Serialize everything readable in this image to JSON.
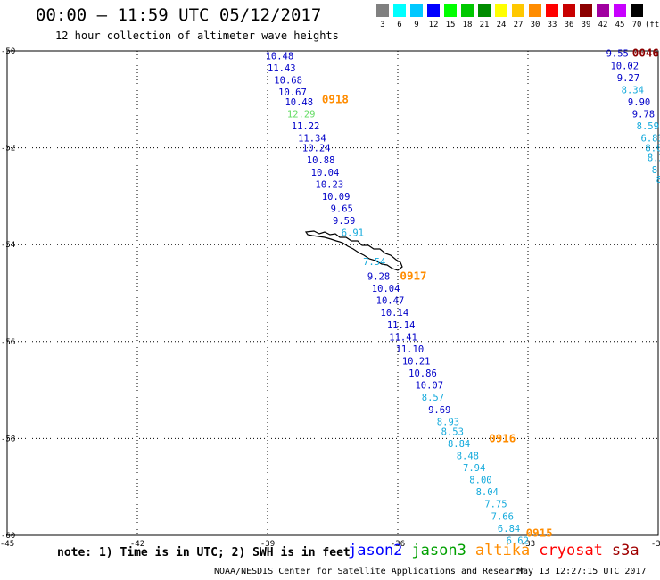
{
  "header": {
    "title": "00:00 — 11:59 UTC 05/12/2017",
    "subtitle": "12 hour collection of altimeter wave heights"
  },
  "legend": {
    "unit": "(ft)",
    "levels": [
      {
        "label": "3",
        "color": "#808080"
      },
      {
        "label": "6",
        "color": "#00ffff"
      },
      {
        "label": "9",
        "color": "#00c8ff"
      },
      {
        "label": "12",
        "color": "#0000ff"
      },
      {
        "label": "15",
        "color": "#00ff00"
      },
      {
        "label": "18",
        "color": "#00c800"
      },
      {
        "label": "21",
        "color": "#008c00"
      },
      {
        "label": "24",
        "color": "#ffff00"
      },
      {
        "label": "27",
        "color": "#ffc800"
      },
      {
        "label": "30",
        "color": "#ff8c00"
      },
      {
        "label": "33",
        "color": "#ff0000"
      },
      {
        "label": "36",
        "color": "#c80000"
      },
      {
        "label": "39",
        "color": "#8c0000"
      },
      {
        "label": "42",
        "color": "#a000a0"
      },
      {
        "label": "45",
        "color": "#c800ff"
      },
      {
        "label": "70",
        "color": "#000000"
      }
    ]
  },
  "axes": {
    "lon_ticks": [
      "-45",
      "-42",
      "-39",
      "-36",
      "-33",
      "-30"
    ],
    "lat_ticks": [
      "-50",
      "-52",
      "-54",
      "-56",
      "-58",
      "-60"
    ]
  },
  "passes": [
    {
      "label": "0918",
      "lon": -37.75,
      "lat": -51.0,
      "color": "#ff8c00"
    },
    {
      "label": "0917",
      "lon": -35.95,
      "lat": -54.65,
      "color": "#ff8c00"
    },
    {
      "label": "0916",
      "lon": -33.9,
      "lat": -58.0,
      "color": "#ff8c00"
    },
    {
      "label": "0915",
      "lon": -33.05,
      "lat": -59.95,
      "color": "#ff8c00"
    },
    {
      "label": "0046",
      "lon": -30.6,
      "lat": -50.05,
      "color": "#8c0000"
    }
  ],
  "observations": [
    {
      "text": "10.48",
      "lon": -39.05,
      "lat": -50.1,
      "color": "#0000c8"
    },
    {
      "text": "11.43",
      "lon": -39.0,
      "lat": -50.35,
      "color": "#0000c8"
    },
    {
      "text": "10.68",
      "lon": -38.85,
      "lat": -50.6,
      "color": "#0000c8"
    },
    {
      "text": "10.67",
      "lon": -38.75,
      "lat": -50.85,
      "color": "#0000c8"
    },
    {
      "text": "10.48",
      "lon": -38.6,
      "lat": -51.05,
      "color": "#0000c8"
    },
    {
      "text": "12.29",
      "lon": -38.55,
      "lat": -51.3,
      "color": "#64dc64"
    },
    {
      "text": "11.22",
      "lon": -38.45,
      "lat": -51.55,
      "color": "#0000c8"
    },
    {
      "text": "11.34",
      "lon": -38.3,
      "lat": -51.8,
      "color": "#0000c8"
    },
    {
      "text": "10.24",
      "lon": -38.2,
      "lat": -52.0,
      "color": "#0000c8"
    },
    {
      "text": "10.88",
      "lon": -38.1,
      "lat": -52.25,
      "color": "#0000c8"
    },
    {
      "text": "10.04",
      "lon": -38.0,
      "lat": -52.5,
      "color": "#0000c8"
    },
    {
      "text": "10.23",
      "lon": -37.9,
      "lat": -52.75,
      "color": "#0000c8"
    },
    {
      "text": "10.09",
      "lon": -37.75,
      "lat": -53.0,
      "color": "#0000c8"
    },
    {
      "text": "9.65",
      "lon": -37.55,
      "lat": -53.25,
      "color": "#0000c8"
    },
    {
      "text": "9.59",
      "lon": -37.5,
      "lat": -53.5,
      "color": "#0000c8"
    },
    {
      "text": "6.91",
      "lon": -37.3,
      "lat": -53.75,
      "color": "#14aadc"
    },
    {
      "text": "7.54",
      "lon": -36.8,
      "lat": -54.35,
      "color": "#14aadc"
    },
    {
      "text": "9.28",
      "lon": -36.7,
      "lat": -54.65,
      "color": "#0000c8"
    },
    {
      "text": "10.04",
      "lon": -36.6,
      "lat": -54.9,
      "color": "#0000c8"
    },
    {
      "text": "10.47",
      "lon": -36.5,
      "lat": -55.15,
      "color": "#0000c8"
    },
    {
      "text": "10.14",
      "lon": -36.4,
      "lat": -55.4,
      "color": "#0000c8"
    },
    {
      "text": "11.14",
      "lon": -36.25,
      "lat": -55.65,
      "color": "#0000c8"
    },
    {
      "text": "11.41",
      "lon": -36.2,
      "lat": -55.9,
      "color": "#0000c8"
    },
    {
      "text": "11.10",
      "lon": -36.05,
      "lat": -56.15,
      "color": "#0000c8"
    },
    {
      "text": "10.21",
      "lon": -35.9,
      "lat": -56.4,
      "color": "#0000c8"
    },
    {
      "text": "10.86",
      "lon": -35.75,
      "lat": -56.65,
      "color": "#0000c8"
    },
    {
      "text": "10.07",
      "lon": -35.6,
      "lat": -56.9,
      "color": "#0000c8"
    },
    {
      "text": "8.57",
      "lon": -35.45,
      "lat": -57.15,
      "color": "#14aadc"
    },
    {
      "text": "9.69",
      "lon": -35.3,
      "lat": -57.4,
      "color": "#0000c8"
    },
    {
      "text": "8.93",
      "lon": -35.1,
      "lat": -57.65,
      "color": "#14aadc"
    },
    {
      "text": "8.53",
      "lon": -35.0,
      "lat": -57.85,
      "color": "#14aadc"
    },
    {
      "text": "8.84",
      "lon": -34.85,
      "lat": -58.1,
      "color": "#14aadc"
    },
    {
      "text": "8.48",
      "lon": -34.65,
      "lat": -58.35,
      "color": "#14aadc"
    },
    {
      "text": "7.94",
      "lon": -34.5,
      "lat": -58.6,
      "color": "#14aadc"
    },
    {
      "text": "8.00",
      "lon": -34.35,
      "lat": -58.85,
      "color": "#14aadc"
    },
    {
      "text": "8.04",
      "lon": -34.2,
      "lat": -59.1,
      "color": "#14aadc"
    },
    {
      "text": "7.75",
      "lon": -34.0,
      "lat": -59.35,
      "color": "#14aadc"
    },
    {
      "text": "7.66",
      "lon": -33.85,
      "lat": -59.6,
      "color": "#14aadc"
    },
    {
      "text": "6.84",
      "lon": -33.7,
      "lat": -59.85,
      "color": "#14aadc"
    },
    {
      "text": "6.62",
      "lon": -33.5,
      "lat": -60.1,
      "color": "#14aadc"
    },
    {
      "text": "9.55",
      "lon": -31.2,
      "lat": -50.05,
      "color": "#0000c8"
    },
    {
      "text": "10.02",
      "lon": -31.1,
      "lat": -50.3,
      "color": "#0000c8"
    },
    {
      "text": "9.27",
      "lon": -30.95,
      "lat": -50.55,
      "color": "#0000c8"
    },
    {
      "text": "8.34",
      "lon": -30.85,
      "lat": -50.8,
      "color": "#14aadc"
    },
    {
      "text": "9.90",
      "lon": -30.7,
      "lat": -51.05,
      "color": "#0000c8"
    },
    {
      "text": "9.78",
      "lon": -30.6,
      "lat": -51.3,
      "color": "#0000c8"
    },
    {
      "text": "8.59",
      "lon": -30.5,
      "lat": -51.55,
      "color": "#14aadc"
    },
    {
      "text": "6.83",
      "lon": -30.4,
      "lat": -51.8,
      "color": "#14aadc"
    },
    {
      "text": "8.03",
      "lon": -30.3,
      "lat": -52.0,
      "color": "#14aadc"
    },
    {
      "text": "8.2",
      "lon": -30.25,
      "lat": -52.2,
      "color": "#14aadc"
    },
    {
      "text": "8",
      "lon": -30.15,
      "lat": -52.45,
      "color": "#14aadc"
    },
    {
      "text": "8",
      "lon": -30.05,
      "lat": -52.65,
      "color": "#14aadc"
    }
  ],
  "note": "note: 1) Time is in UTC; 2) SWH is in feet",
  "satellites": [
    {
      "label": "jason2",
      "color": "#0000ff"
    },
    {
      "label": "jason3",
      "color": "#00a000"
    },
    {
      "label": "altika",
      "color": "#ff8c00"
    },
    {
      "label": "cryosat",
      "color": "#ff0000"
    },
    {
      "label": "s3a",
      "color": "#a00000"
    }
  ],
  "footer": {
    "credit": "NOAA/NESDIS Center for Satellite Applications and Research",
    "timestamp": "May 13 12:27:15 UTC 2017"
  }
}
